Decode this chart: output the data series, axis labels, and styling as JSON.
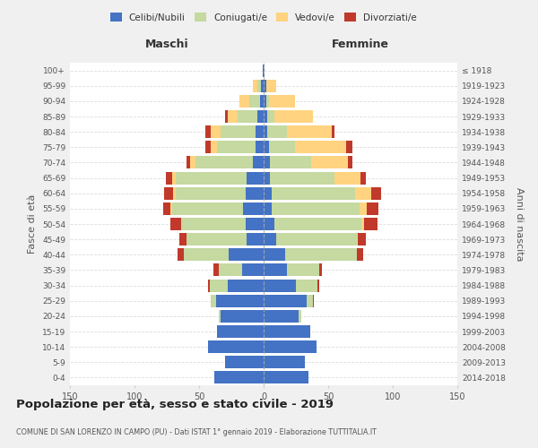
{
  "age_groups": [
    "0-4",
    "5-9",
    "10-14",
    "15-19",
    "20-24",
    "25-29",
    "30-34",
    "35-39",
    "40-44",
    "45-49",
    "50-54",
    "55-59",
    "60-64",
    "65-69",
    "70-74",
    "75-79",
    "80-84",
    "85-89",
    "90-94",
    "95-99",
    "100+"
  ],
  "birth_years": [
    "2014-2018",
    "2009-2013",
    "2004-2008",
    "1999-2003",
    "1994-1998",
    "1989-1993",
    "1984-1988",
    "1979-1983",
    "1974-1978",
    "1969-1973",
    "1964-1968",
    "1959-1963",
    "1954-1958",
    "1949-1953",
    "1944-1948",
    "1939-1943",
    "1934-1938",
    "1929-1933",
    "1924-1928",
    "1919-1923",
    "≤ 1918"
  ],
  "colors": {
    "celibi": "#4472c4",
    "coniugati": "#c5d9a0",
    "vedovi": "#ffd37f",
    "divorziati": "#c0392b"
  },
  "maschi": {
    "celibi": [
      38,
      30,
      43,
      36,
      33,
      37,
      28,
      17,
      27,
      13,
      14,
      16,
      14,
      13,
      8,
      6,
      6,
      5,
      3,
      2,
      1
    ],
    "coniugati": [
      0,
      0,
      0,
      0,
      2,
      4,
      14,
      18,
      35,
      47,
      50,
      55,
      54,
      55,
      45,
      30,
      27,
      15,
      8,
      3,
      0
    ],
    "vedovi": [
      0,
      0,
      0,
      0,
      0,
      0,
      0,
      0,
      0,
      0,
      0,
      1,
      2,
      3,
      4,
      5,
      8,
      8,
      8,
      3,
      0
    ],
    "divorziati": [
      0,
      0,
      0,
      0,
      0,
      0,
      1,
      4,
      5,
      5,
      8,
      6,
      7,
      5,
      3,
      4,
      4,
      2,
      0,
      0,
      0
    ]
  },
  "femmine": {
    "nubili": [
      35,
      32,
      41,
      36,
      27,
      33,
      25,
      18,
      17,
      10,
      8,
      6,
      6,
      5,
      5,
      4,
      3,
      3,
      2,
      2,
      1
    ],
    "coniugate": [
      0,
      0,
      0,
      0,
      2,
      5,
      17,
      25,
      55,
      62,
      68,
      68,
      65,
      50,
      32,
      20,
      15,
      5,
      2,
      0,
      0
    ],
    "vedove": [
      0,
      0,
      0,
      0,
      0,
      0,
      0,
      0,
      0,
      1,
      2,
      6,
      12,
      20,
      28,
      40,
      35,
      30,
      20,
      8,
      0
    ],
    "divorziate": [
      0,
      0,
      0,
      0,
      0,
      1,
      1,
      2,
      5,
      6,
      10,
      9,
      8,
      4,
      4,
      5,
      2,
      0,
      0,
      0,
      0
    ]
  },
  "xlim": 150,
  "title": "Popolazione per età, sesso e stato civile - 2019",
  "subtitle": "COMUNE DI SAN LORENZO IN CAMPO (PU) - Dati ISTAT 1° gennaio 2019 - Elaborazione TUTTITALIA.IT",
  "ylabel": "Fasce di età",
  "ylabel_right": "Anni di nascita",
  "xlabel_maschi": "Maschi",
  "xlabel_femmine": "Femmine",
  "bg_color": "#f0f0f0",
  "plot_bg_color": "#ffffff"
}
